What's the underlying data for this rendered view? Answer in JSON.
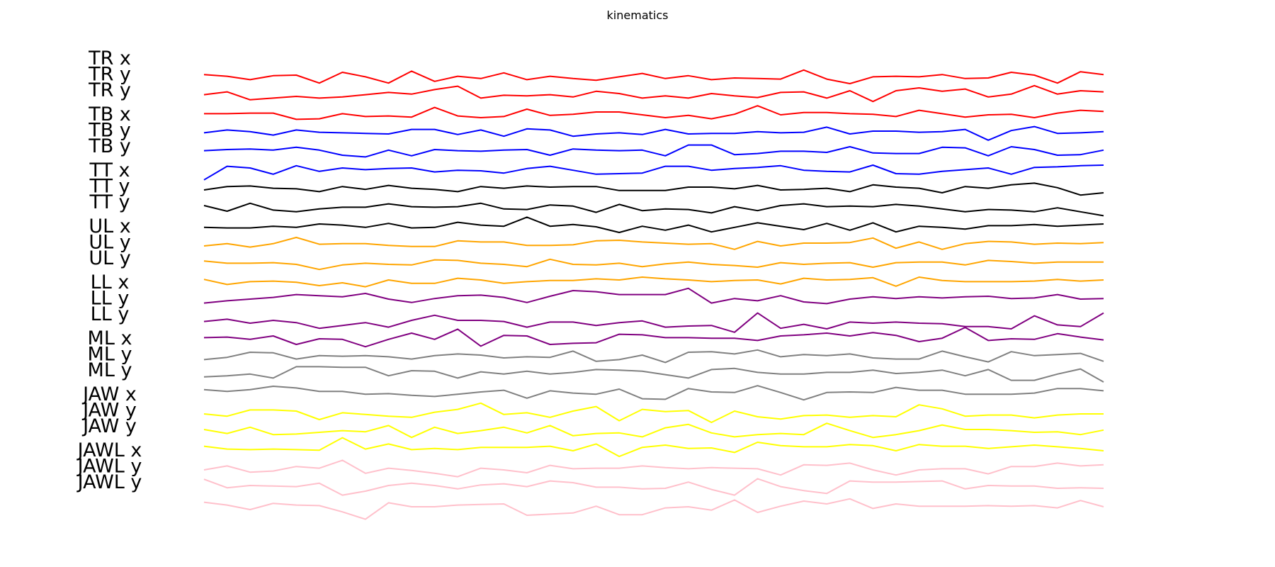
{
  "chart_data": {
    "type": "line",
    "title": "kinematics",
    "xlabel": "",
    "ylabel": "",
    "grid": false,
    "axes_visible": false,
    "series": [
      {
        "name": "TR x",
        "color": "#ff0000",
        "values": [
          0.6,
          0.3,
          -0.3,
          0.4,
          0.5,
          -0.9,
          1.0,
          0.2,
          -0.9,
          1.2,
          -0.6,
          0.3,
          -0.1,
          0.9,
          -0.3,
          0.3,
          -0.1,
          -0.4,
          0.2,
          0.8,
          -0.1,
          0.4,
          -0.3,
          0.0,
          -0.1,
          -0.2,
          1.4,
          -0.2,
          -1.0,
          0.2,
          0.3,
          0.2,
          0.6,
          -0.1,
          0.0,
          1.0,
          0.5,
          -0.9,
          1.1,
          0.6
        ]
      },
      {
        "name": "TR y",
        "color": "#ff0000",
        "values": [
          0.3,
          0.8,
          -0.6,
          -0.3,
          0.0,
          -0.3,
          -0.1,
          0.3,
          0.7,
          0.4,
          1.2,
          1.8,
          -0.3,
          0.2,
          0.1,
          0.3,
          -0.1,
          0.9,
          0.5,
          -0.3,
          0.1,
          -0.3,
          0.5,
          0.1,
          -0.2,
          0.7,
          0.8,
          -0.3,
          1.0,
          -0.9,
          1.0,
          1.5,
          0.9,
          1.3,
          -0.1,
          0.4,
          1.9,
          0.4,
          1.0,
          0.8
        ]
      },
      {
        "name": "TR y",
        "color": "#ff0000",
        "values": [
          0.2,
          0.2,
          0.3,
          0.3,
          -0.8,
          -0.7,
          0.2,
          -0.3,
          -0.2,
          -0.4,
          1.3,
          -0.2,
          -0.5,
          -0.3,
          1.0,
          -0.1,
          0.1,
          0.5,
          0.5,
          0.0,
          -0.5,
          -0.1,
          -0.7,
          0.1,
          1.6,
          0.0,
          0.4,
          0.4,
          0.2,
          0.1,
          -0.3,
          0.8,
          0.2,
          -0.4,
          0.0,
          0.1,
          -0.5,
          0.3,
          0.8,
          0.6
        ]
      },
      {
        "name": "TB x",
        "color": "#0000ff",
        "values": [
          0.2,
          0.7,
          0.4,
          -0.2,
          0.7,
          0.3,
          0.2,
          0.1,
          0.0,
          0.8,
          0.8,
          -0.1,
          0.7,
          -0.4,
          0.9,
          0.7,
          -0.4,
          0.0,
          0.2,
          -0.1,
          0.8,
          0.0,
          0.1,
          0.1,
          0.4,
          0.2,
          0.3,
          1.2,
          0.0,
          0.5,
          0.5,
          0.3,
          0.4,
          0.8,
          -1.1,
          0.6,
          1.3,
          0.1,
          0.2,
          0.4
        ]
      },
      {
        "name": "TB y",
        "color": "#0000ff",
        "values": [
          0.3,
          0.5,
          0.6,
          0.4,
          0.9,
          0.4,
          -0.5,
          -0.8,
          0.4,
          -0.6,
          0.5,
          0.3,
          0.2,
          0.4,
          0.5,
          -0.5,
          0.6,
          0.4,
          0.3,
          0.4,
          -0.6,
          1.3,
          1.3,
          -0.4,
          -0.2,
          0.2,
          0.2,
          0.0,
          1.0,
          -0.1,
          -0.2,
          -0.2,
          0.9,
          0.8,
          -0.6,
          1.0,
          0.5,
          -0.5,
          -0.4,
          0.4
        ]
      },
      {
        "name": "TB y",
        "color": "#0000ff",
        "values": [
          -1.6,
          0.8,
          0.5,
          -0.6,
          0.9,
          -0.1,
          0.5,
          0.2,
          0.4,
          0.5,
          -0.2,
          0.1,
          0.0,
          -0.4,
          0.4,
          0.8,
          0.1,
          -0.6,
          -0.5,
          -0.4,
          0.8,
          0.8,
          0.1,
          0.4,
          0.6,
          0.9,
          0.1,
          -0.1,
          -0.2,
          1.0,
          -0.5,
          -0.6,
          -0.1,
          0.2,
          0.5,
          -0.6,
          0.6,
          0.7,
          0.9,
          1.0
        ]
      },
      {
        "name": "TT x",
        "color": "#000000",
        "values": [
          0.0,
          0.6,
          0.7,
          0.3,
          0.2,
          -0.3,
          0.6,
          0.1,
          0.8,
          0.3,
          0.1,
          -0.3,
          0.6,
          0.3,
          0.7,
          0.5,
          0.6,
          0.6,
          -0.1,
          -0.1,
          -0.1,
          0.5,
          0.5,
          0.2,
          0.8,
          0.0,
          0.1,
          0.3,
          -0.3,
          0.9,
          0.5,
          0.3,
          -0.5,
          0.6,
          0.3,
          0.9,
          1.2,
          0.4,
          -0.9,
          -0.5
        ]
      },
      {
        "name": "TT y",
        "color": "#000000",
        "values": [
          0.5,
          -0.5,
          0.9,
          -0.3,
          -0.6,
          -0.1,
          0.2,
          0.2,
          0.8,
          0.3,
          0.2,
          0.3,
          0.9,
          -0.1,
          -0.2,
          0.6,
          0.4,
          -0.7,
          0.7,
          -0.4,
          -0.1,
          -0.2,
          -0.8,
          0.3,
          -0.4,
          0.5,
          0.8,
          0.3,
          0.4,
          0.3,
          0.7,
          0.4,
          -0.1,
          -0.6,
          -0.2,
          -0.3,
          -0.6,
          0.1,
          -0.6,
          -1.3
        ]
      },
      {
        "name": "TT y",
        "color": "#000000",
        "values": [
          -0.1,
          -0.2,
          -0.2,
          0.1,
          -0.1,
          0.5,
          0.3,
          -0.1,
          0.6,
          -0.2,
          -0.1,
          0.8,
          0.3,
          0.1,
          1.7,
          0.1,
          0.4,
          0.0,
          -1.0,
          0.1,
          -0.6,
          0.3,
          -0.9,
          -0.1,
          0.7,
          0.1,
          -0.5,
          0.6,
          -0.6,
          0.7,
          -0.9,
          0.1,
          -0.1,
          -0.4,
          0.2,
          0.2,
          0.4,
          0.1,
          0.3,
          0.5
        ]
      },
      {
        "name": "UL x",
        "color": "#ffa500",
        "values": [
          0.0,
          0.4,
          -0.2,
          0.4,
          1.5,
          0.3,
          0.4,
          0.4,
          0.1,
          -0.1,
          -0.1,
          0.9,
          0.7,
          0.7,
          0.1,
          0.1,
          0.2,
          0.9,
          1.0,
          0.7,
          0.5,
          0.3,
          0.4,
          -0.6,
          0.8,
          0.0,
          0.5,
          0.5,
          0.6,
          1.4,
          -0.4,
          0.7,
          -0.6,
          0.4,
          0.8,
          0.7,
          0.3,
          0.5,
          0.4,
          0.6
        ]
      },
      {
        "name": "UL y",
        "color": "#ffa500",
        "values": [
          0.6,
          0.2,
          0.2,
          0.3,
          0.0,
          -0.9,
          -0.1,
          0.2,
          0.0,
          -0.1,
          0.8,
          0.7,
          0.2,
          0.0,
          -0.4,
          0.9,
          0.0,
          -0.1,
          0.2,
          -0.4,
          0.1,
          0.4,
          0.0,
          -0.2,
          -0.5,
          0.3,
          0.0,
          0.2,
          0.3,
          -0.5,
          0.3,
          0.4,
          0.4,
          -0.1,
          0.7,
          0.5,
          0.2,
          0.4,
          0.4,
          0.4
        ]
      },
      {
        "name": "UL y",
        "color": "#ffa500",
        "values": [
          0.6,
          -0.3,
          0.2,
          0.3,
          0.1,
          -0.5,
          0.0,
          -0.7,
          0.5,
          -0.1,
          -0.1,
          0.8,
          0.5,
          -0.1,
          0.2,
          0.4,
          0.4,
          0.7,
          0.5,
          1.0,
          0.7,
          0.5,
          0.2,
          0.4,
          0.5,
          -0.2,
          0.8,
          0.5,
          0.6,
          0.9,
          -0.6,
          1.0,
          0.4,
          0.2,
          0.2,
          0.2,
          0.3,
          0.6,
          0.3,
          0.5
        ]
      },
      {
        "name": "LL x",
        "color": "#800080",
        "values": [
          -0.2,
          0.2,
          0.5,
          0.8,
          1.3,
          1.1,
          0.9,
          1.5,
          0.5,
          -0.1,
          0.6,
          1.1,
          1.2,
          0.8,
          -0.1,
          1.0,
          2.0,
          1.8,
          1.3,
          1.3,
          1.3,
          2.4,
          -0.2,
          0.6,
          0.2,
          1.1,
          0.0,
          -0.3,
          0.5,
          0.9,
          0.6,
          0.9,
          0.7,
          0.9,
          1.0,
          0.6,
          0.7,
          1.3,
          0.5,
          0.6
        ]
      },
      {
        "name": "LL y",
        "color": "#800080",
        "values": [
          -0.2,
          0.2,
          -0.5,
          0.0,
          -0.4,
          -1.4,
          -0.9,
          -0.4,
          -1.2,
          0.0,
          0.9,
          0.0,
          0.0,
          -0.2,
          -1.2,
          -0.3,
          -0.3,
          -0.9,
          -0.4,
          -0.1,
          -1.2,
          -1.0,
          -0.9,
          -2.1,
          1.3,
          -1.4,
          -0.7,
          -1.5,
          -0.3,
          -0.5,
          -0.3,
          -0.5,
          -0.6,
          -1.1,
          -1.1,
          -1.5,
          0.8,
          -0.8,
          -1.1,
          1.3
        ]
      },
      {
        "name": "LL y",
        "color": "#800080",
        "values": [
          0.2,
          0.3,
          -0.1,
          0.5,
          -1.0,
          0.0,
          -0.1,
          -1.4,
          -0.1,
          1.0,
          -0.1,
          1.7,
          -1.3,
          0.6,
          0.5,
          -1.0,
          -0.8,
          -0.7,
          0.8,
          0.7,
          0.2,
          0.2,
          0.1,
          0.1,
          -0.3,
          0.5,
          0.7,
          1.0,
          0.5,
          1.1,
          0.6,
          -0.5,
          0.1,
          2.0,
          -0.3,
          0.0,
          -0.1,
          0.9,
          0.3,
          -0.2
        ]
      },
      {
        "name": "ML x",
        "color": "#808080",
        "values": [
          -0.3,
          0.1,
          1.0,
          0.9,
          -0.2,
          0.4,
          0.3,
          0.4,
          0.2,
          -0.2,
          0.4,
          0.7,
          0.5,
          0.0,
          0.2,
          0.1,
          1.2,
          -0.6,
          -0.3,
          0.5,
          -0.8,
          1.0,
          1.1,
          0.7,
          1.4,
          0.2,
          0.6,
          0.4,
          0.7,
          0.0,
          -0.2,
          -0.2,
          1.2,
          0.2,
          -0.7,
          1.1,
          0.4,
          0.6,
          0.8,
          -0.6
        ]
      },
      {
        "name": "ML y",
        "color": "#808080",
        "values": [
          -0.1,
          0.1,
          0.4,
          -0.3,
          1.7,
          1.7,
          1.6,
          1.6,
          0.1,
          1.0,
          0.9,
          -0.3,
          0.8,
          0.4,
          0.9,
          0.4,
          0.7,
          1.2,
          1.1,
          0.9,
          0.3,
          -0.3,
          1.2,
          1.4,
          0.7,
          0.4,
          0.4,
          0.7,
          0.7,
          1.1,
          0.5,
          0.7,
          1.1,
          0.1,
          1.2,
          -0.7,
          -0.7,
          0.4,
          1.3,
          -1.0
        ]
      },
      {
        "name": "ML y",
        "color": "#808080",
        "values": [
          0.9,
          0.6,
          0.9,
          1.5,
          1.2,
          0.6,
          0.6,
          0.1,
          0.2,
          -0.1,
          -0.3,
          0.1,
          0.5,
          0.8,
          -0.6,
          0.7,
          0.3,
          0.1,
          1.0,
          -0.7,
          -0.8,
          1.1,
          0.5,
          0.4,
          1.6,
          0.4,
          -0.9,
          0.4,
          0.5,
          0.4,
          1.3,
          0.8,
          0.8,
          0.1,
          0.1,
          0.1,
          0.3,
          1.1,
          1.1,
          0.7
        ]
      },
      {
        "name": "JAW x",
        "color": "#ffff00",
        "values": [
          0.0,
          -0.4,
          0.7,
          0.7,
          0.5,
          -1.0,
          0.2,
          -0.1,
          -0.4,
          -0.6,
          0.3,
          0.8,
          1.9,
          -0.1,
          0.2,
          -0.6,
          0.5,
          1.3,
          -1.2,
          0.8,
          0.4,
          0.6,
          -1.5,
          0.5,
          -0.5,
          -0.9,
          -0.3,
          -0.2,
          -0.6,
          -0.3,
          -0.5,
          1.6,
          0.9,
          -0.4,
          -0.2,
          -0.2,
          -0.7,
          -0.2,
          0.0,
          0.0
        ]
      },
      {
        "name": "JAW y",
        "color": "#ffff00",
        "values": [
          0.5,
          -0.2,
          0.9,
          -0.4,
          -0.3,
          0.0,
          0.3,
          0.1,
          1.2,
          -0.9,
          0.9,
          -0.2,
          0.3,
          0.9,
          -0.1,
          1.2,
          -0.6,
          -0.2,
          -0.1,
          -0.8,
          0.8,
          1.4,
          -0.1,
          -0.8,
          -0.4,
          -0.2,
          -0.4,
          1.6,
          0.3,
          -0.9,
          -0.4,
          0.3,
          1.3,
          0.5,
          0.5,
          0.3,
          0.0,
          0.1,
          -0.4,
          0.4
        ]
      },
      {
        "name": "JAW y",
        "color": "#ffff00",
        "values": [
          0.8,
          0.3,
          0.2,
          0.3,
          0.2,
          0.1,
          2.3,
          0.3,
          1.2,
          0.2,
          0.4,
          0.2,
          0.6,
          0.6,
          0.6,
          0.8,
          0.0,
          1.2,
          -1.0,
          0.6,
          1.0,
          0.4,
          0.5,
          -0.3,
          1.5,
          0.9,
          0.7,
          0.7,
          1.1,
          0.9,
          0.0,
          1.1,
          0.8,
          0.8,
          0.4,
          0.7,
          1.0,
          0.7,
          0.4,
          0.0
        ]
      },
      {
        "name": "JAWL x",
        "color": "#ffc0cb",
        "values": [
          0.0,
          0.7,
          -0.4,
          -0.2,
          0.6,
          0.3,
          1.7,
          -0.6,
          0.3,
          -0.1,
          -0.6,
          -1.2,
          0.3,
          0.0,
          -0.5,
          0.8,
          0.2,
          0.3,
          0.3,
          0.7,
          0.4,
          0.2,
          0.4,
          0.3,
          0.2,
          -0.9,
          0.9,
          0.8,
          1.2,
          0.0,
          -0.9,
          0.0,
          0.2,
          0.2,
          -0.7,
          0.6,
          0.6,
          1.2,
          0.7,
          0.9
        ]
      },
      {
        "name": "JAWL y",
        "color": "#ffc0cb",
        "values": [
          1.6,
          0.1,
          0.5,
          0.4,
          0.3,
          0.9,
          -1.2,
          -0.5,
          0.5,
          0.9,
          0.5,
          -0.1,
          0.6,
          0.8,
          0.3,
          1.3,
          1.0,
          0.2,
          0.2,
          -0.1,
          0.0,
          1.1,
          -0.2,
          -1.2,
          1.7,
          0.3,
          -0.4,
          -0.9,
          1.3,
          1.1,
          1.1,
          1.2,
          1.3,
          -0.1,
          0.5,
          0.4,
          0.4,
          0.0,
          0.1,
          0.0
        ]
      },
      {
        "name": "JAWL y",
        "color": "#ffc0cb",
        "values": [
          0.8,
          0.3,
          -0.5,
          0.6,
          0.3,
          0.2,
          -0.9,
          -2.2,
          0.7,
          0.0,
          0.0,
          0.3,
          0.4,
          0.5,
          -1.5,
          -1.3,
          -1.1,
          0.1,
          -1.4,
          -1.4,
          -0.2,
          0.0,
          -0.6,
          1.2,
          -1.0,
          0.1,
          1.0,
          0.5,
          1.4,
          -0.3,
          0.5,
          0.1,
          0.1,
          0.1,
          0.2,
          0.1,
          0.2,
          -0.2,
          1.1,
          0.0
        ]
      }
    ]
  }
}
